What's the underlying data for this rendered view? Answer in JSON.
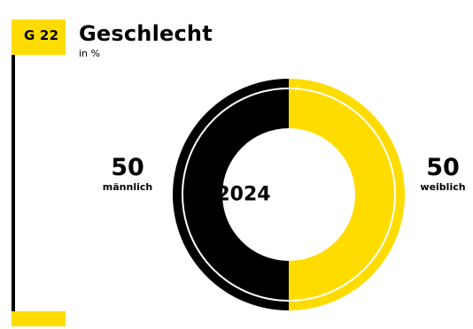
{
  "figure": {
    "number": "G 22",
    "title": "Geschlecht",
    "unit": "in %"
  },
  "colors": {
    "accent": "#ffdc00",
    "ink": "#000000"
  },
  "chart_data": {
    "type": "pie",
    "title": "Geschlecht",
    "unit": "in %",
    "center_label": "2024",
    "slices": [
      {
        "label": "männlich",
        "value": 50,
        "color": "#000000"
      },
      {
        "label": "weiblich",
        "value": 50,
        "color": "#ffdc00"
      }
    ]
  }
}
